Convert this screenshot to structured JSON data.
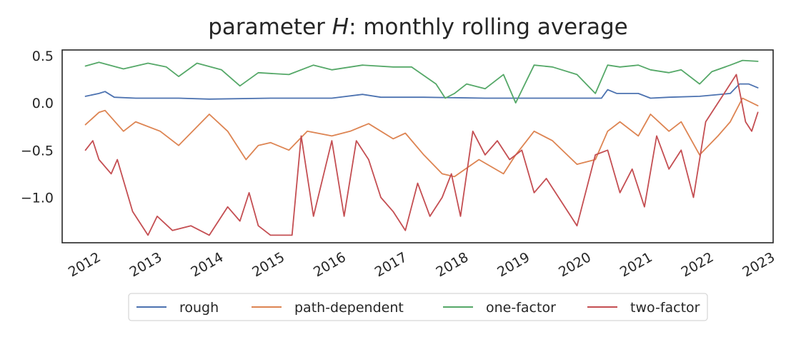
{
  "chart_data": {
    "type": "line",
    "title_prefix": "parameter ",
    "title_var": "H",
    "title_suffix": ": monthly rolling average",
    "xlabel": "",
    "ylabel": "",
    "xlim": [
      2011.6,
      2023.2
    ],
    "ylim": [
      -1.48,
      0.56
    ],
    "yticks": [
      0.5,
      0.0,
      -0.5,
      -1.0
    ],
    "ytick_labels": [
      "0.5",
      "0.0",
      "−0.5",
      "−1.0"
    ],
    "xticks": [
      2012,
      2013,
      2014,
      2015,
      2016,
      2017,
      2018,
      2019,
      2020,
      2021,
      2022,
      2023
    ],
    "xtick_labels": [
      "2012",
      "2013",
      "2014",
      "2015",
      "2016",
      "2017",
      "2018",
      "2019",
      "2020",
      "2021",
      "2022",
      "2023"
    ],
    "grid": false,
    "legend_placement": "bottom-center",
    "series": [
      {
        "name": "rough",
        "color": "#4c72b0",
        "x": [
          2011.98,
          2012.2,
          2012.3,
          2012.45,
          2012.8,
          2013.5,
          2014.0,
          2015.0,
          2016.0,
          2016.5,
          2016.8,
          2017.5,
          2018.5,
          2019.5,
          2020.4,
          2020.5,
          2020.65,
          2021.0,
          2021.2,
          2021.5,
          2022.0,
          2022.5,
          2022.65,
          2022.8,
          2022.95
        ],
        "y": [
          0.07,
          0.1,
          0.12,
          0.06,
          0.05,
          0.05,
          0.04,
          0.05,
          0.05,
          0.09,
          0.06,
          0.06,
          0.05,
          0.05,
          0.05,
          0.14,
          0.1,
          0.1,
          0.05,
          0.06,
          0.07,
          0.1,
          0.2,
          0.2,
          0.16
        ]
      },
      {
        "name": "path-dependent",
        "color": "#dd8452",
        "x": [
          2011.98,
          2012.2,
          2012.3,
          2012.6,
          2012.8,
          2013.2,
          2013.5,
          2014.0,
          2014.3,
          2014.6,
          2014.8,
          2015.0,
          2015.3,
          2015.6,
          2016.0,
          2016.3,
          2016.6,
          2017.0,
          2017.2,
          2017.5,
          2017.8,
          2018.0,
          2018.4,
          2018.8,
          2019.0,
          2019.3,
          2019.6,
          2020.0,
          2020.3,
          2020.5,
          2020.7,
          2021.0,
          2021.2,
          2021.5,
          2021.7,
          2022.0,
          2022.3,
          2022.5,
          2022.7,
          2022.95
        ],
        "y": [
          -0.23,
          -0.1,
          -0.08,
          -0.3,
          -0.2,
          -0.3,
          -0.45,
          -0.12,
          -0.3,
          -0.6,
          -0.45,
          -0.42,
          -0.5,
          -0.3,
          -0.35,
          -0.3,
          -0.22,
          -0.38,
          -0.32,
          -0.55,
          -0.75,
          -0.78,
          -0.6,
          -0.75,
          -0.55,
          -0.3,
          -0.4,
          -0.65,
          -0.6,
          -0.3,
          -0.2,
          -0.35,
          -0.12,
          -0.3,
          -0.2,
          -0.55,
          -0.35,
          -0.2,
          0.05,
          -0.03
        ]
      },
      {
        "name": "one-factor",
        "color": "#55a868",
        "x": [
          2011.98,
          2012.2,
          2012.6,
          2013.0,
          2013.3,
          2013.5,
          2013.8,
          2014.2,
          2014.5,
          2014.8,
          2015.3,
          2015.7,
          2016.0,
          2016.5,
          2017.0,
          2017.3,
          2017.7,
          2017.85,
          2018.0,
          2018.2,
          2018.5,
          2018.8,
          2019.0,
          2019.3,
          2019.6,
          2020.0,
          2020.3,
          2020.5,
          2020.7,
          2021.0,
          2021.2,
          2021.5,
          2021.7,
          2022.0,
          2022.2,
          2022.5,
          2022.7,
          2022.95
        ],
        "y": [
          0.39,
          0.43,
          0.36,
          0.42,
          0.38,
          0.28,
          0.42,
          0.35,
          0.18,
          0.32,
          0.3,
          0.4,
          0.35,
          0.4,
          0.38,
          0.38,
          0.2,
          0.05,
          0.1,
          0.2,
          0.15,
          0.3,
          0.0,
          0.4,
          0.38,
          0.3,
          0.1,
          0.4,
          0.38,
          0.4,
          0.35,
          0.32,
          0.35,
          0.2,
          0.33,
          0.4,
          0.45,
          0.44
        ]
      },
      {
        "name": "two-factor",
        "color": "#c44e52",
        "x": [
          2011.98,
          2012.1,
          2012.2,
          2012.4,
          2012.5,
          2012.75,
          2013.0,
          2013.15,
          2013.4,
          2013.7,
          2014.0,
          2014.3,
          2014.5,
          2014.65,
          2014.8,
          2015.0,
          2015.35,
          2015.5,
          2015.7,
          2016.0,
          2016.2,
          2016.4,
          2016.6,
          2016.8,
          2017.0,
          2017.2,
          2017.4,
          2017.6,
          2017.8,
          2017.95,
          2018.1,
          2018.3,
          2018.5,
          2018.7,
          2018.9,
          2019.1,
          2019.3,
          2019.5,
          2019.7,
          2019.9,
          2020.0,
          2020.3,
          2020.5,
          2020.7,
          2020.9,
          2021.1,
          2021.3,
          2021.5,
          2021.7,
          2021.9,
          2022.1,
          2022.3,
          2022.45,
          2022.6,
          2022.75,
          2022.85,
          2022.95
        ],
        "y": [
          -0.5,
          -0.4,
          -0.6,
          -0.75,
          -0.6,
          -1.15,
          -1.4,
          -1.2,
          -1.35,
          -1.3,
          -1.4,
          -1.1,
          -1.25,
          -0.95,
          -1.3,
          -1.4,
          -1.4,
          -0.35,
          -1.2,
          -0.4,
          -1.2,
          -0.4,
          -0.6,
          -1.0,
          -1.15,
          -1.35,
          -0.85,
          -1.2,
          -1.0,
          -0.75,
          -1.2,
          -0.3,
          -0.55,
          -0.4,
          -0.6,
          -0.5,
          -0.95,
          -0.8,
          -1.0,
          -1.2,
          -1.3,
          -0.55,
          -0.5,
          -0.95,
          -0.7,
          -1.1,
          -0.35,
          -0.7,
          -0.5,
          -1.0,
          -0.2,
          0.0,
          0.15,
          0.3,
          -0.2,
          -0.3,
          -0.1
        ]
      }
    ]
  }
}
